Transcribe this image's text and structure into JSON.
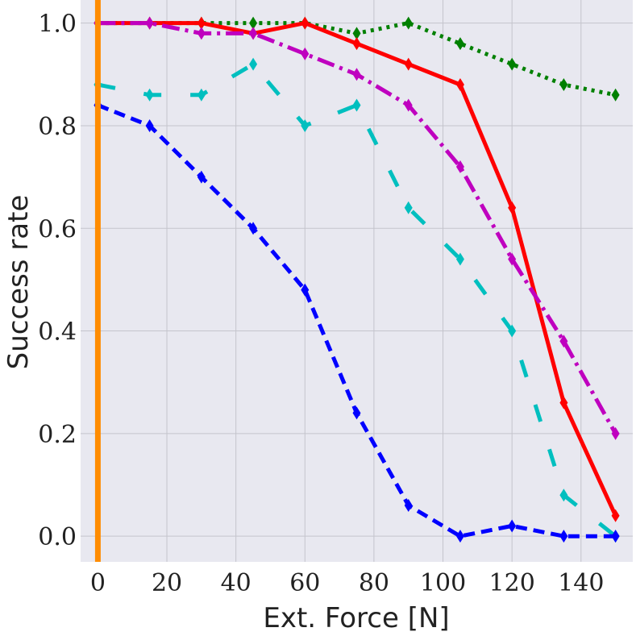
{
  "chart_data": {
    "type": "line",
    "xlabel": "Ext. Force [N]",
    "ylabel": "Success rate",
    "xlim": [
      -5,
      155
    ],
    "ylim": [
      -0.05,
      1.045
    ],
    "xticks": [
      0,
      20,
      40,
      60,
      80,
      100,
      120,
      140
    ],
    "yticks": [
      0.0,
      0.2,
      0.4,
      0.6,
      0.8,
      1.0
    ],
    "xtick_labels": [
      "0",
      "20",
      "40",
      "60",
      "80",
      "100",
      "120",
      "140"
    ],
    "ytick_labels": [
      "0.0",
      "0.2",
      "0.4",
      "0.6",
      "0.8",
      "1.0"
    ],
    "grid": true,
    "x": [
      0,
      15,
      30,
      45,
      60,
      75,
      90,
      105,
      120,
      135,
      150
    ],
    "vline": {
      "x": 0,
      "color": "#ff8c00"
    },
    "series": [
      {
        "color": "#008000",
        "style": "dotted",
        "values": [
          1.0,
          1.0,
          1.0,
          1.0,
          1.0,
          0.98,
          1.0,
          0.96,
          0.92,
          0.88,
          0.86
        ]
      },
      {
        "color": "#ff0000",
        "style": "solid",
        "values": [
          1.0,
          1.0,
          1.0,
          0.98,
          1.0,
          0.96,
          0.92,
          0.88,
          0.64,
          0.26,
          0.04
        ]
      },
      {
        "color": "#bf00bf",
        "style": "dashdot",
        "values": [
          1.0,
          1.0,
          0.98,
          0.98,
          0.94,
          0.9,
          0.84,
          0.72,
          0.54,
          0.38,
          0.2
        ]
      },
      {
        "color": "#00bfbf",
        "style": "loosedash",
        "values": [
          0.88,
          0.86,
          0.86,
          0.92,
          0.8,
          0.84,
          0.64,
          0.54,
          0.4,
          0.08,
          0.0
        ]
      },
      {
        "color": "#0000ff",
        "style": "dashed",
        "values": [
          0.84,
          0.8,
          0.7,
          0.6,
          0.48,
          0.24,
          0.06,
          0.0,
          0.02,
          0.0,
          0.0
        ]
      }
    ]
  }
}
